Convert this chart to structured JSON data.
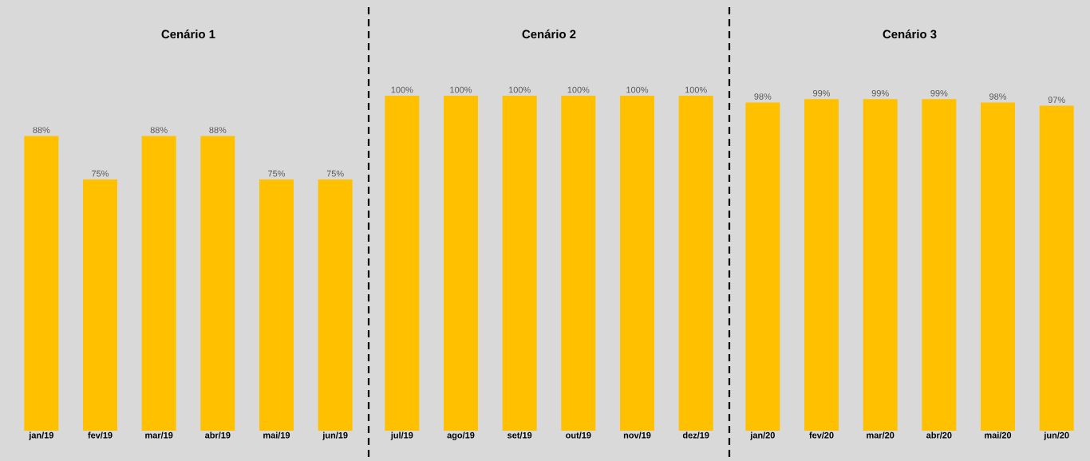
{
  "chart_data": [
    {
      "type": "bar",
      "title": "Cenário 1",
      "categories": [
        "jan/19",
        "fev/19",
        "mar/19",
        "abr/19",
        "mai/19",
        "jun/19"
      ],
      "values": [
        88,
        75,
        88,
        88,
        75,
        75
      ],
      "value_labels": [
        "88%",
        "75%",
        "88%",
        "88%",
        "75%",
        "75%"
      ],
      "color": "#ffc000",
      "tick_labels": "x"
    },
    {
      "type": "bar",
      "title": "Cenário 2",
      "categories": [
        "jul/19",
        "ago/19",
        "set/19",
        "out/19",
        "nov/19",
        "dez/19"
      ],
      "values": [
        100,
        100,
        100,
        100,
        100,
        100
      ],
      "value_labels": [
        "100%",
        "100%",
        "100%",
        "100%",
        "100%",
        "100%"
      ],
      "color": "#ffc000",
      "tick_labels": "x"
    },
    {
      "type": "bar",
      "title": "Cenário 3",
      "categories": [
        "jan/20",
        "fev/20",
        "mar/20",
        "abr/20",
        "mai/20",
        "jun/20"
      ],
      "values": [
        98,
        99,
        99,
        99,
        98,
        97
      ],
      "value_labels": [
        "98%",
        "99%",
        "99%",
        "99%",
        "98%",
        "97%"
      ],
      "color": "#ffc000",
      "tick_labels": "x"
    }
  ]
}
